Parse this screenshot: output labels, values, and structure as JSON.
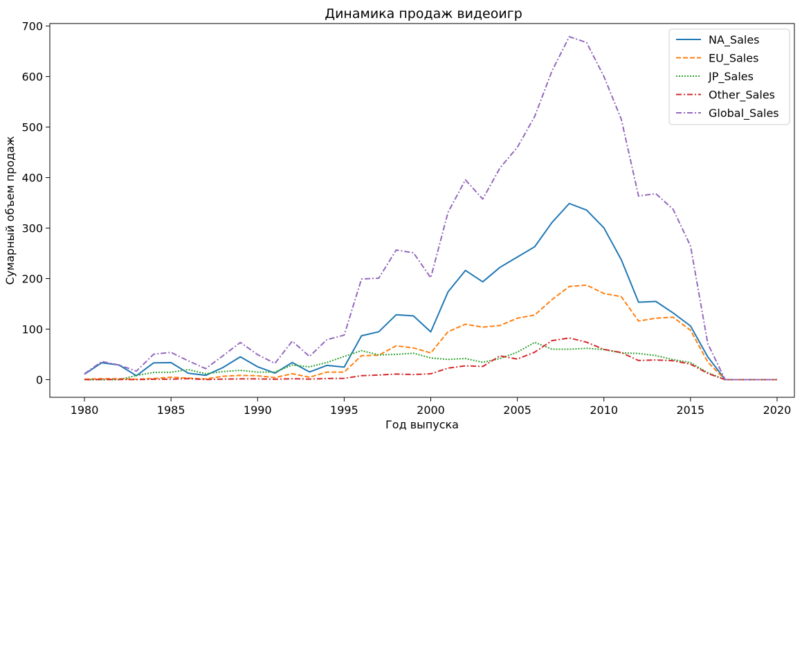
{
  "chart_data": {
    "type": "line",
    "title": "Динамика продаж видеоигр",
    "xlabel": "Год выпуска",
    "ylabel": "Сумарный объем продаж",
    "xlim": [
      1978,
      2021
    ],
    "ylim": [
      -35,
      705
    ],
    "xticks": [
      1980,
      1985,
      1990,
      1995,
      2000,
      2005,
      2010,
      2015,
      2020
    ],
    "yticks": [
      0,
      100,
      200,
      300,
      400,
      500,
      600,
      700
    ],
    "grid": false,
    "legend_position": "top-right",
    "x": [
      1980,
      1981,
      1982,
      1983,
      1984,
      1985,
      1986,
      1987,
      1988,
      1989,
      1990,
      1991,
      1992,
      1993,
      1994,
      1995,
      1996,
      1997,
      1998,
      1999,
      2000,
      2001,
      2002,
      2003,
      2004,
      2005,
      2006,
      2007,
      2008,
      2009,
      2010,
      2011,
      2012,
      2013,
      2014,
      2015,
      2016,
      2017,
      2018,
      2019,
      2020
    ],
    "series": [
      {
        "name": "NA_Sales",
        "color": "#1f77b4",
        "dash": "solid",
        "values": [
          10.6,
          33.4,
          28.9,
          7.8,
          33.3,
          33.7,
          12.5,
          8.5,
          23.9,
          45.2,
          25.5,
          12.8,
          33.9,
          15.1,
          28.2,
          24.8,
          86.8,
          94.8,
          128.4,
          126.1,
          94.5,
          173.9,
          216.2,
          193.6,
          222.4,
          242.6,
          263.1,
          311.2,
          348.7,
          335.6,
          300.5,
          237.5,
          153.3,
          154.8,
          131.9,
          106.1,
          44.9,
          0.1,
          0,
          0,
          0
        ]
      },
      {
        "name": "EU_Sales",
        "color": "#ff7f0e",
        "dash": "dashed",
        "values": [
          0.7,
          1.9,
          1.7,
          0.8,
          2.1,
          4.7,
          3,
          1.3,
          6.6,
          8.4,
          7.6,
          3.9,
          11.7,
          4.7,
          14.9,
          14.9,
          47.3,
          48.3,
          66.9,
          62.7,
          52.8,
          94.9,
          109.7,
          103.8,
          107.3,
          121.6,
          127.8,
          158.5,
          184.4,
          187.2,
          170.6,
          164.2,
          116,
          121.6,
          123.5,
          97.7,
          34.6,
          0,
          0,
          0,
          0
        ]
      },
      {
        "name": "JP_Sales",
        "color": "#2ca02c",
        "dash": "dotted",
        "values": [
          0,
          0,
          0,
          8.1,
          14.3,
          14.6,
          19.8,
          11.6,
          15.8,
          18.4,
          14.9,
          14.8,
          28.9,
          25.3,
          33.9,
          45.8,
          57.4,
          48.9,
          50,
          52.3,
          42.8,
          39.9,
          41.8,
          34.2,
          41.7,
          54.3,
          73.7,
          60.3,
          60.3,
          61.9,
          59.5,
          53,
          51.8,
          47.6,
          39.5,
          33.7,
          13.7,
          0,
          0,
          0,
          0
        ]
      },
      {
        "name": "Other_Sales",
        "color": "#d62728",
        "dash": "dashdot",
        "values": [
          0.1,
          0.3,
          0.3,
          0.1,
          0.7,
          0.9,
          1.9,
          0.2,
          1,
          1.5,
          1.4,
          0.7,
          1.7,
          1,
          2.2,
          2.6,
          7.7,
          9.1,
          11,
          10.1,
          11.6,
          22.7,
          27.3,
          26,
          47,
          40.6,
          54.4,
          77.3,
          82.4,
          74.1,
          59.8,
          53.6,
          37.8,
          38.8,
          37.3,
          30.6,
          12.3,
          0,
          0,
          0,
          0
        ]
      },
      {
        "name": "Global_Sales",
        "color": "#9467bd",
        "dash": "dashdot",
        "values": [
          11.4,
          35.8,
          28.9,
          16.8,
          50.4,
          53.9,
          37.1,
          21.7,
          47.2,
          73.5,
          49.4,
          32.2,
          76.2,
          45.9,
          79.2,
          88.1,
          199.2,
          200.9,
          256.5,
          251.1,
          201.6,
          331.5,
          395.5,
          357.5,
          419.3,
          459.9,
          521,
          611.1,
          678.9,
          667.3,
          600.3,
          515.8,
          363.5,
          368.1,
          337,
          264.4,
          70.9,
          0.1,
          0,
          0,
          0
        ]
      }
    ]
  }
}
